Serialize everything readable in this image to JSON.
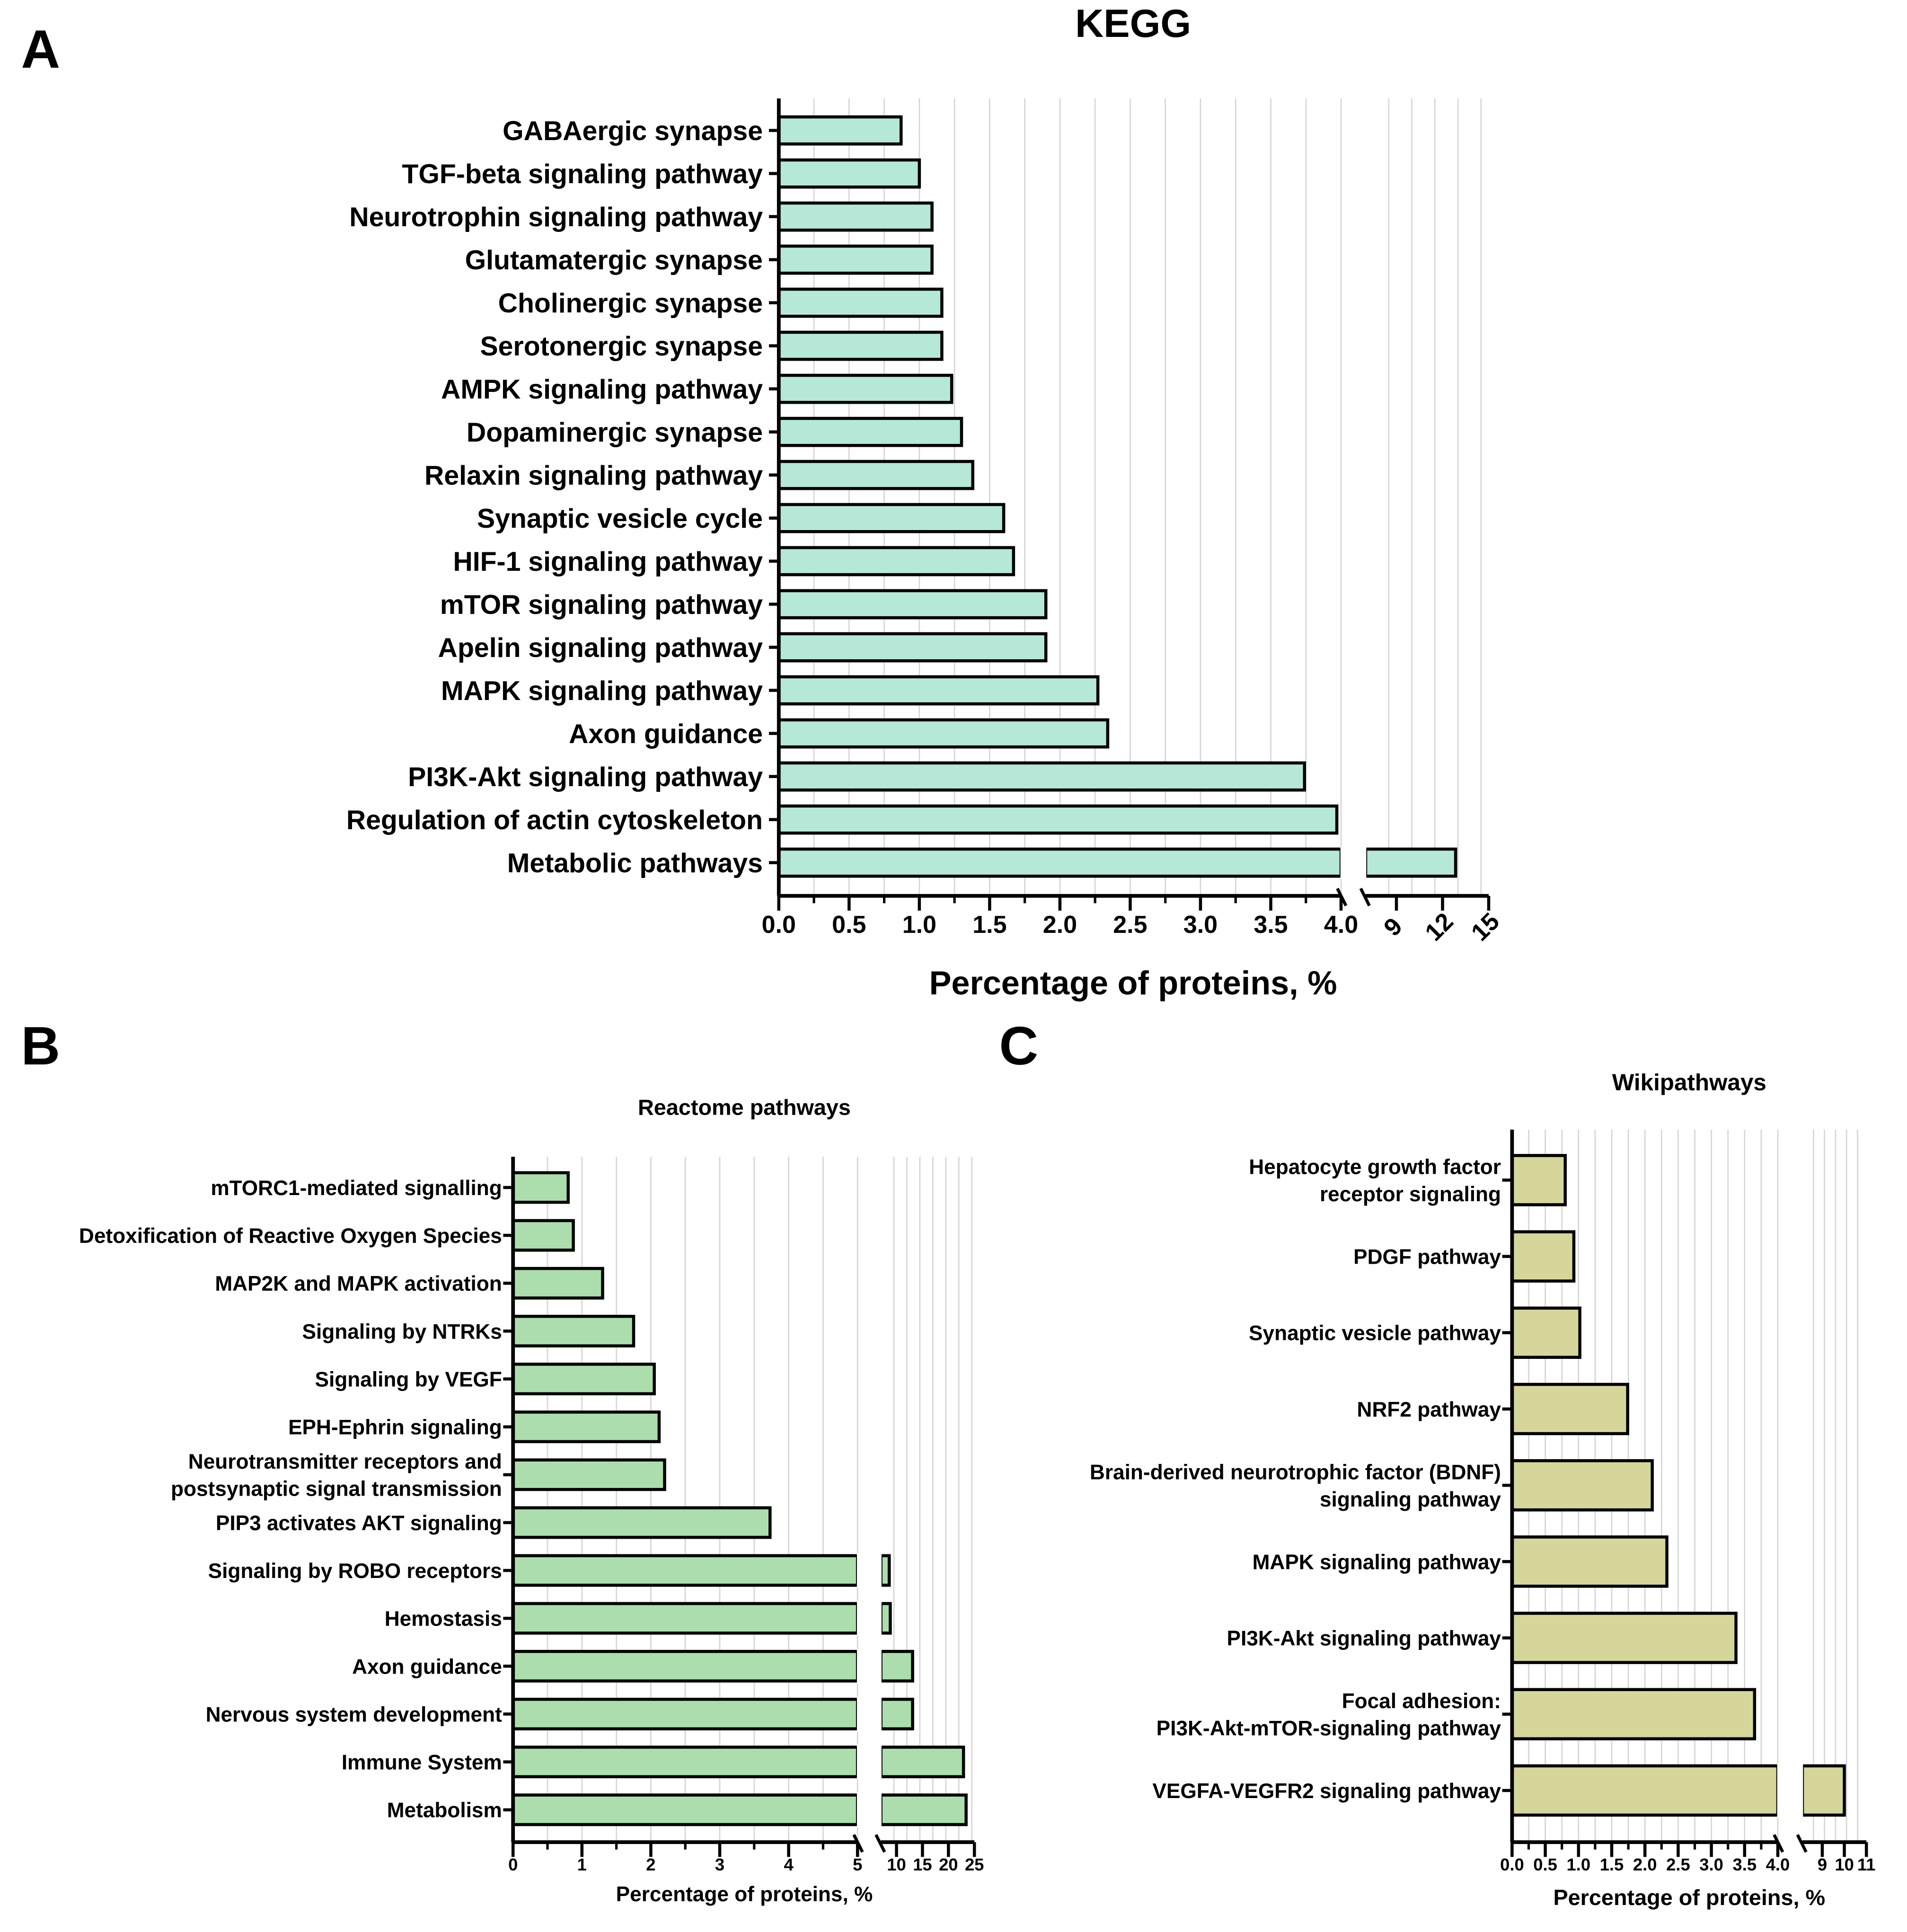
{
  "chart_data": [
    {
      "panel": "A",
      "type": "bar",
      "orientation": "horizontal",
      "title": "KEGG",
      "xlabel": "Percentage of proteins, %",
      "ylabel": "",
      "fill": "#b5e8d6",
      "axis_break": [
        4.0,
        7.0
      ],
      "xlim": [
        0,
        15
      ],
      "xticks": [
        "0.0",
        "0.5",
        "1.0",
        "1.5",
        "2.0",
        "2.5",
        "3.0",
        "3.5",
        "4.0",
        "9",
        "12",
        "15"
      ],
      "grid": true,
      "categories": [
        "GABAergic synapse",
        "TGF-beta signaling pathway",
        "Neurotrophin signaling pathway",
        "Glutamatergic synapse",
        "Cholinergic synapse",
        "Serotonergic synapse",
        "AMPK signaling pathway",
        "Dopaminergic synapse",
        "Relaxin signaling pathway",
        "Synaptic vesicle cycle",
        "HIF-1 signaling pathway",
        "mTOR signaling pathway",
        "Apelin signaling pathway",
        "MAPK signaling pathway",
        "Axon guidance",
        "PI3K-Akt signaling pathway",
        "Regulation of actin cytoskeleton",
        "Metabolic pathways"
      ],
      "values": [
        0.87,
        1.0,
        1.09,
        1.09,
        1.16,
        1.16,
        1.23,
        1.3,
        1.38,
        1.6,
        1.67,
        1.9,
        1.9,
        2.27,
        2.34,
        3.74,
        3.97,
        12.85
      ]
    },
    {
      "panel": "B",
      "type": "bar",
      "orientation": "horizontal",
      "title": "Reactome pathways",
      "xlabel": "Percentage of proteins, %",
      "ylabel": "",
      "fill": "#abdeac",
      "axis_break": [
        5,
        7
      ],
      "xlim": [
        0,
        25
      ],
      "xticks": [
        "0",
        "1",
        "2",
        "3",
        "4",
        "5",
        "10",
        "15",
        "20",
        "25"
      ],
      "grid": true,
      "categories": [
        "mTORC1-mediated signalling",
        "Detoxification of Reactive Oxygen Species",
        "MAP2K and MAPK activation",
        "Signaling by NTRKs",
        "Signaling by VEGF",
        "EPH-Ephrin signaling",
        "Neurotransmitter receptors and\npostsynaptic signal transmission",
        "PIP3 activates AKT signaling",
        "Signaling by ROBO receptors",
        "Hemostasis",
        "Axon guidance",
        "Nervous system development",
        "Immune System",
        "Metabolism"
      ],
      "values": [
        0.8,
        0.875,
        1.3,
        1.75,
        2.05,
        2.12,
        2.2,
        3.73,
        8.6,
        8.8,
        13.1,
        13.1,
        22.9,
        23.4
      ]
    },
    {
      "panel": "C",
      "type": "bar",
      "orientation": "horizontal",
      "title": "Wikipathways",
      "xlabel": "Percentage of proteins, %",
      "ylabel": "",
      "fill": "#d6d69a",
      "axis_break": [
        4.0,
        8.1
      ],
      "xlim": [
        0,
        11
      ],
      "xticks": [
        "0.0",
        "0.5",
        "1.0",
        "1.5",
        "2.0",
        "2.5",
        "3.0",
        "3.5",
        "4.0",
        "9",
        "10",
        "11"
      ],
      "grid": true,
      "categories": [
        "Hepatocyte growth factor\nreceptor signaling",
        "PDGF pathway",
        "Synaptic vesicle pathway",
        "NRF2 pathway",
        "Brain-derived neurotrophic factor (BDNF)\nsignaling pathway",
        "MAPK signaling pathway",
        "PI3K-Akt signaling pathway",
        "Focal adhesion:\nPI3K-Akt-mTOR-signaling pathway",
        "VEGFA-VEGFR2 signaling pathway"
      ],
      "values": [
        0.8,
        0.93,
        1.02,
        1.74,
        2.11,
        2.33,
        3.37,
        3.65,
        10.0
      ]
    }
  ]
}
